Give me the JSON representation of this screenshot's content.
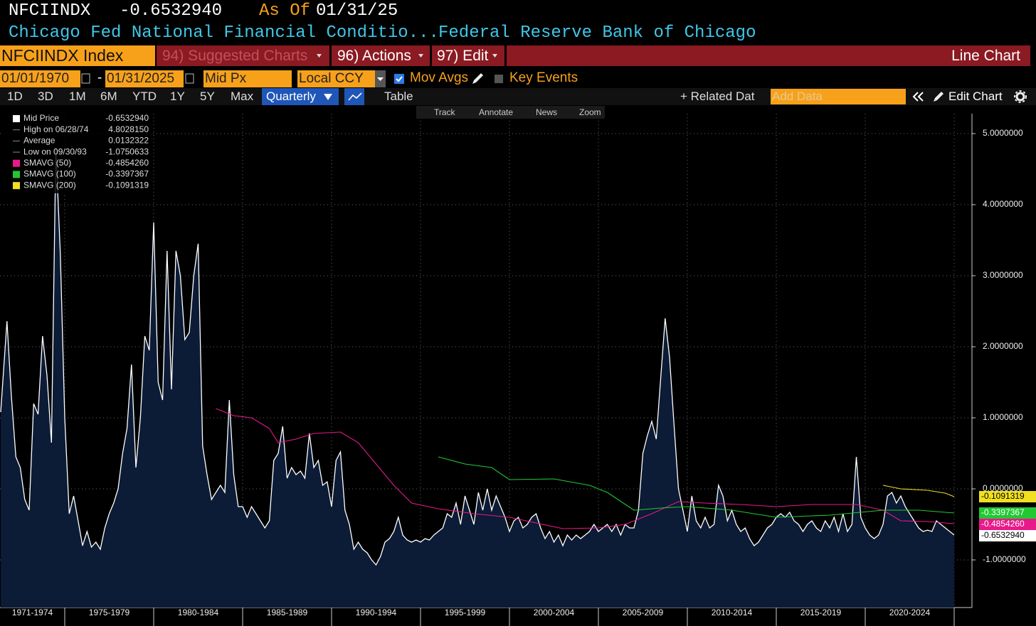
{
  "header": {
    "ticker": "NFCIINDX",
    "last": "-0.6532940",
    "as_of_label": "As Of",
    "as_of_date": "01/31/25",
    "name": "Chicago Fed National Financial Conditio...",
    "source": "Federal Reserve Bank of Chicago"
  },
  "menu": {
    "security": "NFCIINDX Index",
    "items": [
      "94) Suggested Charts",
      "96) Actions",
      "97) Edit"
    ],
    "view": "Line Chart"
  },
  "settings": {
    "start": "01/01/1970",
    "dash": "-",
    "end": "01/31/2025",
    "field": "Mid Px",
    "currency": "Local CCY",
    "mov_avgs": "Mov Avgs",
    "key_events": "Key Events"
  },
  "toolbar": {
    "periods": [
      "1D",
      "3D",
      "1M",
      "6M",
      "YTD",
      "1Y",
      "5Y",
      "Max"
    ],
    "frequency": "Quarterly",
    "table": "Table",
    "related": "+ Related Dat",
    "add_data": "Add Data",
    "edit_chart": "Edit Chart"
  },
  "chart_tools": [
    "Track",
    "Annotate",
    "News",
    "Zoom"
  ],
  "chart_data": {
    "type": "line",
    "categories": [
      "1971-1974",
      "1975-1979",
      "1980-1984",
      "1985-1989",
      "1990-1994",
      "1995-1999",
      "2000-2004",
      "2005-2009",
      "2010-2014",
      "2015-2019",
      "2020-2024"
    ],
    "xlim": [
      1971.36,
      2026.0
    ],
    "xticks": [
      1975,
      1980,
      1985,
      1990,
      1995,
      2000,
      2005,
      2010,
      2015,
      2020,
      2025
    ],
    "ylim": [
      -1.67,
      5.28
    ],
    "yticks": [
      {
        "value": -1,
        "label": "-1.0000000"
      },
      {
        "value": 0,
        "label": "0.0000000"
      },
      {
        "value": 1,
        "label": "1.0000000"
      },
      {
        "value": 2,
        "label": "2.0000000"
      },
      {
        "value": 3,
        "label": "3.0000000"
      },
      {
        "value": 4,
        "label": "4.0000000"
      },
      {
        "value": 5,
        "label": "5.0000000"
      }
    ],
    "grid": true,
    "stats": [
      {
        "label": "High on 06/28/74",
        "value_label": "4.8028150"
      },
      {
        "label": "Average",
        "value_label": "0.0132322"
      },
      {
        "label": "Low on 09/30/93",
        "value_label": "-1.0750633"
      }
    ],
    "series": [
      {
        "name": "Mid Price",
        "color": "#ffffff",
        "last_label": "-0.6532940",
        "x": [
          1971.4,
          1971.75,
          1972.0,
          1972.25,
          1972.5,
          1972.75,
          1973.0,
          1973.25,
          1973.5,
          1973.75,
          1974.0,
          1974.25,
          1974.5,
          1974.75,
          1975.0,
          1975.25,
          1975.5,
          1975.75,
          1976.0,
          1976.25,
          1976.5,
          1976.75,
          1977.0,
          1977.25,
          1977.5,
          1977.75,
          1978.0,
          1978.25,
          1978.5,
          1978.75,
          1979.0,
          1979.25,
          1979.5,
          1979.75,
          1980.0,
          1980.25,
          1980.5,
          1980.75,
          1981.0,
          1981.25,
          1981.5,
          1981.75,
          1982.0,
          1982.25,
          1982.5,
          1982.75,
          1983.0,
          1983.25,
          1983.5,
          1983.75,
          1984.0,
          1984.25,
          1984.5,
          1984.75,
          1985.0,
          1985.25,
          1985.5,
          1985.75,
          1986.0,
          1986.25,
          1986.5,
          1986.75,
          1987.0,
          1987.25,
          1987.5,
          1987.75,
          1988.0,
          1988.25,
          1988.5,
          1988.75,
          1989.0,
          1989.25,
          1989.5,
          1989.75,
          1990.0,
          1990.25,
          1990.5,
          1990.75,
          1991.0,
          1991.25,
          1991.5,
          1991.75,
          1992.0,
          1992.25,
          1992.5,
          1992.75,
          1993.0,
          1993.25,
          1993.5,
          1993.75,
          1994.0,
          1994.25,
          1994.5,
          1994.75,
          1995.0,
          1995.25,
          1995.5,
          1995.75,
          1996.0,
          1996.25,
          1996.5,
          1996.75,
          1997.0,
          1997.25,
          1997.5,
          1997.75,
          1998.0,
          1998.25,
          1998.5,
          1998.75,
          1999.0,
          1999.25,
          1999.5,
          1999.75,
          2000.0,
          2000.25,
          2000.5,
          2000.75,
          2001.0,
          2001.25,
          2001.5,
          2001.75,
          2002.0,
          2002.25,
          2002.5,
          2002.75,
          2003.0,
          2003.25,
          2003.5,
          2003.75,
          2004.0,
          2004.25,
          2004.5,
          2004.75,
          2005.0,
          2005.25,
          2005.5,
          2005.75,
          2006.0,
          2006.25,
          2006.5,
          2006.75,
          2007.0,
          2007.25,
          2007.5,
          2007.75,
          2008.0,
          2008.25,
          2008.5,
          2008.75,
          2009.0,
          2009.25,
          2009.5,
          2009.75,
          2010.0,
          2010.25,
          2010.5,
          2010.75,
          2011.0,
          2011.25,
          2011.5,
          2011.75,
          2012.0,
          2012.25,
          2012.5,
          2012.75,
          2013.0,
          2013.25,
          2013.5,
          2013.75,
          2014.0,
          2014.25,
          2014.5,
          2014.75,
          2015.0,
          2015.25,
          2015.5,
          2015.75,
          2016.0,
          2016.25,
          2016.5,
          2016.75,
          2017.0,
          2017.25,
          2017.5,
          2017.75,
          2018.0,
          2018.25,
          2018.5,
          2018.75,
          2019.0,
          2019.25,
          2019.5,
          2019.75,
          2020.0,
          2020.25,
          2020.5,
          2020.75,
          2021.0,
          2021.25,
          2021.5,
          2021.75,
          2022.0,
          2022.25,
          2022.5,
          2022.75,
          2023.0,
          2023.25,
          2023.5,
          2023.75,
          2024.0,
          2024.25,
          2024.5,
          2024.75,
          2025.0
        ],
        "values": [
          1.08,
          2.36,
          1.3,
          0.45,
          0.3,
          -0.15,
          -0.3,
          1.2,
          1.05,
          2.15,
          1.6,
          0.65,
          4.8,
          3.3,
          1.0,
          -0.35,
          -0.1,
          -0.45,
          -0.8,
          -0.6,
          -0.82,
          -0.75,
          -0.85,
          -0.55,
          -0.35,
          -0.2,
          0.0,
          0.5,
          0.85,
          1.75,
          0.3,
          1.0,
          2.15,
          1.95,
          3.75,
          1.5,
          1.25,
          3.35,
          1.4,
          3.35,
          3.0,
          2.1,
          2.2,
          3.0,
          3.45,
          0.6,
          0.2,
          -0.15,
          -0.05,
          0.05,
          -0.05,
          1.25,
          0.2,
          -0.25,
          -0.25,
          -0.4,
          -0.25,
          -0.35,
          -0.45,
          -0.55,
          -0.45,
          0.4,
          0.5,
          0.88,
          0.15,
          0.3,
          0.2,
          0.25,
          0.15,
          0.78,
          0.3,
          0.4,
          0.05,
          0.1,
          -0.25,
          0.4,
          0.52,
          -0.3,
          -0.5,
          -0.85,
          -0.75,
          -0.85,
          -0.9,
          -1.0,
          -1.07,
          -0.95,
          -0.75,
          -0.7,
          -0.6,
          -0.4,
          -0.65,
          -0.72,
          -0.75,
          -0.72,
          -0.75,
          -0.7,
          -0.72,
          -0.65,
          -0.6,
          -0.55,
          -0.35,
          -0.4,
          -0.2,
          -0.5,
          -0.1,
          -0.3,
          -0.5,
          -0.05,
          -0.3,
          0.0,
          -0.3,
          -0.1,
          -0.25,
          -0.4,
          -0.6,
          -0.45,
          -0.4,
          -0.55,
          -0.5,
          -0.4,
          -0.35,
          -0.55,
          -0.7,
          -0.6,
          -0.75,
          -0.65,
          -0.8,
          -0.65,
          -0.72,
          -0.65,
          -0.7,
          -0.65,
          -0.6,
          -0.5,
          -0.6,
          -0.55,
          -0.5,
          -0.6,
          -0.5,
          -0.65,
          -0.5,
          -0.55,
          -0.55,
          -0.3,
          0.5,
          0.75,
          0.95,
          0.7,
          1.55,
          2.4,
          1.85,
          0.9,
          0.0,
          -0.3,
          -0.6,
          -0.1,
          -0.45,
          -0.55,
          -0.4,
          -0.55,
          -0.5,
          0.05,
          -0.1,
          -0.45,
          -0.3,
          -0.5,
          -0.6,
          -0.55,
          -0.7,
          -0.8,
          -0.75,
          -0.65,
          -0.55,
          -0.5,
          -0.4,
          -0.35,
          -0.4,
          -0.33,
          -0.45,
          -0.5,
          -0.6,
          -0.5,
          -0.45,
          -0.55,
          -0.6,
          -0.45,
          -0.55,
          -0.4,
          -0.6,
          -0.35,
          -0.6,
          -0.5,
          0.45,
          -0.4,
          -0.55,
          -0.65,
          -0.7,
          -0.65,
          -0.5,
          -0.1,
          -0.05,
          -0.2,
          -0.1,
          -0.25,
          -0.35,
          -0.45,
          -0.55,
          -0.6,
          -0.58,
          -0.6,
          -0.45,
          -0.5,
          -0.55,
          -0.6,
          -0.65
        ]
      },
      {
        "name": "SMAVG (50)",
        "color": "#e8198b",
        "last_label": "-0.4854260",
        "x": [
          1983.5,
          1984.5,
          1985.5,
          1986.5,
          1987.0,
          1988.0,
          1989.0,
          1990.5,
          1991.5,
          1992.5,
          1993.5,
          1994.5,
          1996.0,
          1998.0,
          2000.0,
          2001.5,
          2003.0,
          2005.0,
          2006.5,
          2008.0,
          2009.5,
          2011.0,
          2013.0,
          2015.0,
          2017.0,
          2019.5,
          2021.0,
          2022.0,
          2023.5,
          2025.0
        ],
        "values": [
          1.13,
          1.03,
          1.0,
          0.85,
          0.65,
          0.7,
          0.78,
          0.8,
          0.65,
          0.35,
          0.05,
          -0.2,
          -0.28,
          -0.35,
          -0.4,
          -0.48,
          -0.56,
          -0.55,
          -0.5,
          -0.35,
          -0.18,
          -0.2,
          -0.22,
          -0.25,
          -0.22,
          -0.22,
          -0.3,
          -0.45,
          -0.46,
          -0.49
        ]
      },
      {
        "name": "SMAVG (100)",
        "color": "#22c832",
        "last_label": "-0.3397367",
        "x": [
          1996.0,
          1997.5,
          1999.0,
          2000.0,
          2002.5,
          2004.5,
          2005.5,
          2007.0,
          2008.5,
          2010.0,
          2012.5,
          2015.0,
          2018.0,
          2021.0,
          2023.0,
          2025.0
        ],
        "values": [
          0.45,
          0.35,
          0.3,
          0.13,
          0.14,
          0.05,
          -0.05,
          -0.3,
          -0.27,
          -0.25,
          -0.3,
          -0.4,
          -0.37,
          -0.3,
          -0.3,
          -0.34
        ]
      },
      {
        "name": "SMAVG (200)",
        "color": "#f0e020",
        "last_label": "-0.1091319",
        "x": [
          2021.0,
          2022.0,
          2023.5,
          2024.5,
          2025.0
        ],
        "values": [
          0.05,
          0.0,
          -0.02,
          -0.06,
          -0.11
        ]
      }
    ]
  }
}
